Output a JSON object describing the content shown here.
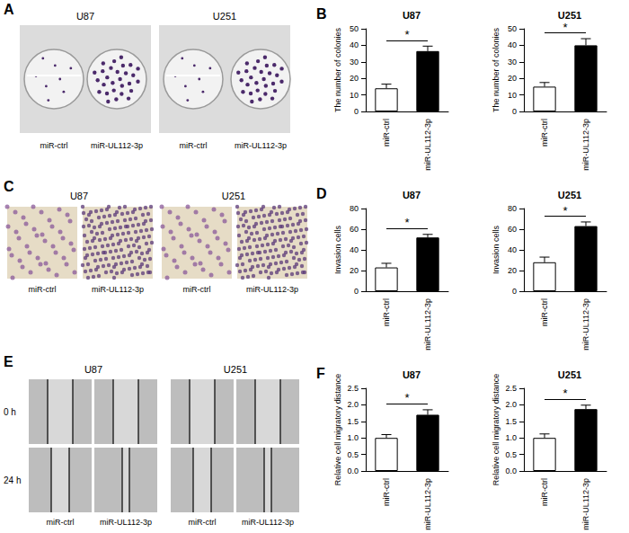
{
  "panels": [
    {
      "letter": "A",
      "cell_lines": [
        "U87",
        "U251"
      ],
      "groups": [
        "miR-ctrl",
        "miR-UL112-3p"
      ]
    },
    {
      "letter": "C",
      "cell_lines": [
        "U87",
        "U251"
      ],
      "groups": [
        "miR-ctrl",
        "miR-UL112-3p"
      ]
    },
    {
      "letter": "E",
      "cell_lines": [
        "U87",
        "U251"
      ],
      "groups": [
        "miR-ctrl",
        "miR-UL112-3p"
      ],
      "time_points": [
        "0 h",
        "24 h"
      ]
    }
  ],
  "chart_data": [
    {
      "panel": "B",
      "type": "bar",
      "title": "U87",
      "y_label": "The number of colonies",
      "categories": [
        "miR-ctrl",
        "miR-UL112-3p"
      ],
      "values": [
        14,
        36.5
      ],
      "errors": [
        2.5,
        3
      ],
      "colors": [
        "#ffffff",
        "#000000"
      ],
      "ylim": [
        0,
        50
      ],
      "yticks": [
        0,
        10,
        20,
        30,
        40,
        50
      ],
      "significance": "*"
    },
    {
      "type": "bar",
      "title": "U251",
      "y_label": "The number of colonies",
      "categories": [
        "miR-ctrl",
        "miR-UL112-3p"
      ],
      "values": [
        15,
        40
      ],
      "errors": [
        2.5,
        4
      ],
      "colors": [
        "#ffffff",
        "#000000"
      ],
      "ylim": [
        0,
        50
      ],
      "yticks": [
        0,
        10,
        20,
        30,
        40,
        50
      ],
      "significance": "*"
    },
    {
      "panel": "D",
      "type": "bar",
      "title": "U87",
      "y_label": "Invasion cells",
      "categories": [
        "miR-ctrl",
        "miR-UL112-3p"
      ],
      "values": [
        23,
        52
      ],
      "errors": [
        4,
        3
      ],
      "colors": [
        "#ffffff",
        "#000000"
      ],
      "ylim": [
        0,
        80
      ],
      "yticks": [
        0,
        20,
        40,
        60,
        80
      ],
      "significance": "*"
    },
    {
      "type": "bar",
      "title": "U251",
      "y_label": "Invasion cells",
      "categories": [
        "miR-ctrl",
        "miR-UL112-3p"
      ],
      "values": [
        28,
        63
      ],
      "errors": [
        5,
        4
      ],
      "colors": [
        "#ffffff",
        "#000000"
      ],
      "ylim": [
        0,
        80
      ],
      "yticks": [
        0,
        20,
        40,
        60,
        80
      ],
      "significance": "*"
    },
    {
      "panel": "F",
      "type": "bar",
      "title": "U87",
      "y_label": "Relative cell migratory distance",
      "categories": [
        "miR-ctrl",
        "miR-UL112-3p"
      ],
      "values": [
        1.0,
        1.7
      ],
      "errors": [
        0.1,
        0.15
      ],
      "colors": [
        "#ffffff",
        "#000000"
      ],
      "ylim": [
        0,
        2.5
      ],
      "yticks": [
        {
          "value": 0,
          "label": "0.0"
        },
        {
          "value": 0.5,
          "label": "0.5"
        },
        {
          "value": 1,
          "label": "1.0"
        },
        {
          "value": 1.5,
          "label": "1.5"
        },
        {
          "value": 2,
          "label": "2.0"
        },
        {
          "value": 2.5,
          "label": "2.5"
        }
      ],
      "significance": "*"
    },
    {
      "type": "bar",
      "title": "U251",
      "y_label": "Relative cell migratory distance",
      "categories": [
        "miR-ctrl",
        "miR-UL112-3p"
      ],
      "values": [
        1.0,
        1.87
      ],
      "errors": [
        0.12,
        0.12
      ],
      "colors": [
        "#ffffff",
        "#000000"
      ],
      "ylim": [
        0,
        2.5
      ],
      "yticks": [
        {
          "value": 0,
          "label": "0.0"
        },
        {
          "value": 0.5,
          "label": "0.5"
        },
        {
          "value": 1,
          "label": "1.0"
        },
        {
          "value": 1.5,
          "label": "1.5"
        },
        {
          "value": 2,
          "label": "2.0"
        },
        {
          "value": 2.5,
          "label": "2.5"
        }
      ],
      "significance": "*"
    }
  ]
}
